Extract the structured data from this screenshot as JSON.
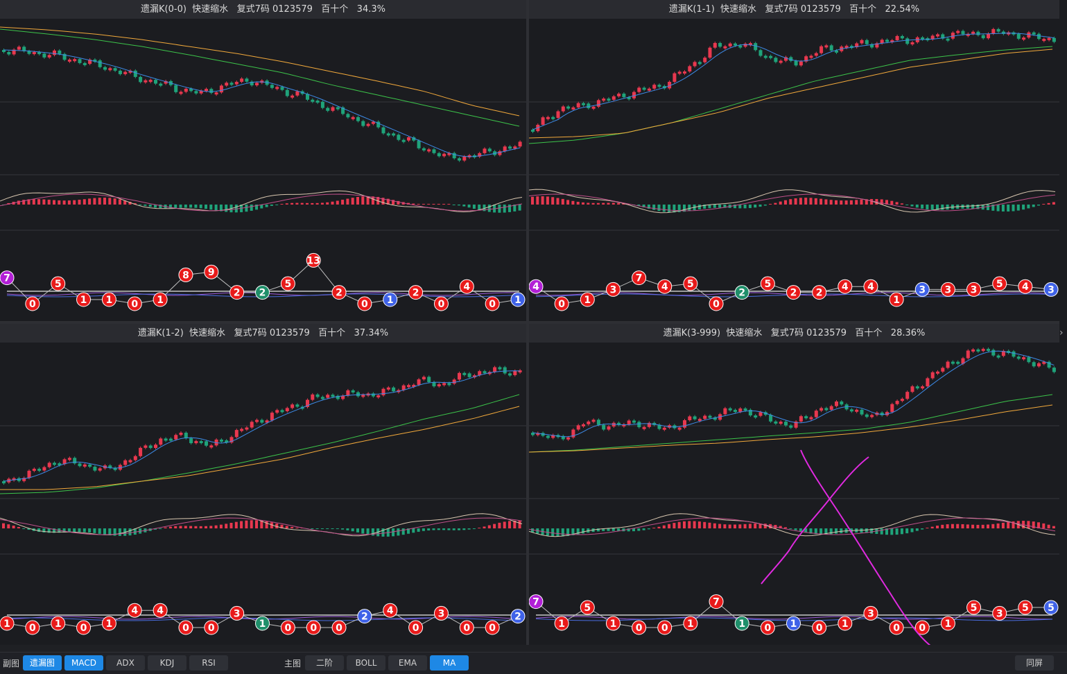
{
  "panels": [
    {
      "title": "遗漏K(0-0)  快速缩水   复式7码 0123579   百十个   34.3%"
    },
    {
      "title": "遗漏K(1-1)  快速缩水   复式7码 0123579   百十个   22.54%"
    },
    {
      "title": "遗漏K(1-2)  快速缩水   复式7码 0123579   百十个   37.34%"
    },
    {
      "title": "遗漏K(3-999)  快速缩水   复式7码 0123579   百十个   28.36%"
    }
  ],
  "omission_markers": [
    [
      7,
      0,
      5,
      1,
      1,
      0,
      1,
      8,
      9,
      2,
      2,
      5,
      13,
      2,
      0,
      1,
      2,
      0,
      4,
      0,
      1
    ],
    [
      4,
      0,
      1,
      3,
      7,
      4,
      5,
      0,
      2,
      5,
      2,
      2,
      4,
      4,
      1,
      3,
      3,
      3,
      5,
      4,
      3
    ],
    [
      1,
      0,
      1,
      0,
      1,
      4,
      4,
      0,
      0,
      3,
      1,
      0,
      0,
      0,
      2,
      4,
      0,
      3,
      0,
      0,
      2
    ],
    [
      7,
      1,
      5,
      1,
      0,
      0,
      1,
      7,
      1,
      0,
      1,
      0,
      1,
      3,
      0,
      0,
      1,
      5,
      3,
      5,
      5
    ]
  ],
  "colors": {
    "up": "#e8384f",
    "down": "#1fa37a",
    "ma5": "#3d8be8",
    "ma10": "#3cc44a",
    "ma20": "#f2a93b",
    "marker_red": "#e81a1a",
    "marker_green": "#1f8f6a",
    "marker_blue": "#3f62e8",
    "marker_purple": "#b21fd6",
    "annotation": "#e02ae0"
  },
  "toolbar": {
    "sub_label": "副图",
    "sub_buttons": [
      {
        "label": "遗漏图",
        "active": true
      },
      {
        "label": "MACD",
        "active": true
      },
      {
        "label": "ADX",
        "active": false
      },
      {
        "label": "KDJ",
        "active": false
      },
      {
        "label": "RSI",
        "active": false
      }
    ],
    "main_label": "主图",
    "main_buttons": [
      {
        "label": "二阶",
        "active": false
      },
      {
        "label": "BOLL",
        "active": false
      },
      {
        "label": "EMA",
        "active": false
      },
      {
        "label": "MA",
        "active": true
      }
    ],
    "sync_label": "同屏"
  }
}
